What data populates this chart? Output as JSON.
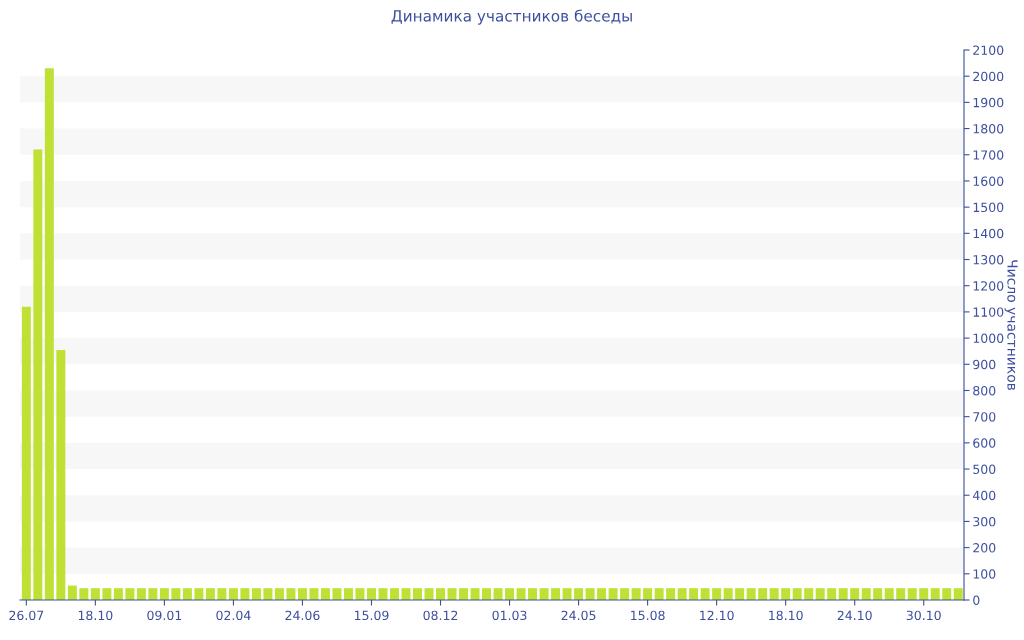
{
  "chart_data": {
    "type": "bar",
    "title": "Динамика участников беседы",
    "ylabel": "Число участников",
    "categories": [
      "26.07",
      null,
      null,
      null,
      null,
      null,
      "18.10",
      null,
      null,
      null,
      null,
      null,
      "09.01",
      null,
      null,
      null,
      null,
      null,
      "02.04",
      null,
      null,
      null,
      null,
      null,
      "24.06",
      null,
      null,
      null,
      null,
      null,
      "15.09",
      null,
      null,
      null,
      null,
      null,
      "08.12",
      null,
      null,
      null,
      null,
      null,
      "01.03",
      null,
      null,
      null,
      null,
      null,
      "24.05",
      null,
      null,
      null,
      null,
      null,
      "15.08",
      null,
      null,
      null,
      null,
      null,
      "12.10",
      null,
      null,
      null,
      null,
      null,
      "18.10",
      null,
      null,
      null,
      null,
      null,
      "24.10",
      null,
      null,
      null,
      null,
      null,
      "30.10",
      null,
      null,
      null
    ],
    "values": [
      1120,
      1720,
      2030,
      955,
      55,
      45,
      45,
      45,
      45,
      45,
      45,
      45,
      45,
      45,
      45,
      45,
      45,
      45,
      45,
      45,
      45,
      45,
      45,
      45,
      45,
      45,
      45,
      45,
      45,
      45,
      45,
      45,
      45,
      45,
      45,
      45,
      45,
      45,
      45,
      45,
      45,
      45,
      45,
      45,
      45,
      45,
      45,
      45,
      45,
      45,
      45,
      45,
      45,
      45,
      45,
      45,
      45,
      45,
      45,
      45,
      45,
      45,
      45,
      45,
      45,
      45,
      45,
      45,
      45,
      45,
      45,
      45,
      45,
      45,
      45,
      45,
      45,
      45,
      45,
      45,
      45,
      45
    ],
    "color": "#bfe034",
    "ylim": [
      0,
      2100
    ],
    "yticks": [
      0,
      100,
      200,
      300,
      400,
      500,
      600,
      700,
      800,
      900,
      1000,
      1100,
      1200,
      1300,
      1400,
      1500,
      1600,
      1700,
      1800,
      1900,
      2000,
      2100
    ],
    "bands": [
      {
        "axis": "y",
        "from": 100,
        "to": 200,
        "color": "#f7f7f7"
      },
      {
        "axis": "y",
        "from": 300,
        "to": 400,
        "color": "#f7f7f7"
      },
      {
        "axis": "y",
        "from": 500,
        "to": 600,
        "color": "#f7f7f7"
      },
      {
        "axis": "y",
        "from": 700,
        "to": 800,
        "color": "#f7f7f7"
      },
      {
        "axis": "y",
        "from": 900,
        "to": 1000,
        "color": "#f7f7f7"
      },
      {
        "axis": "y",
        "from": 1100,
        "to": 1200,
        "color": "#f7f7f7"
      },
      {
        "axis": "y",
        "from": 1300,
        "to": 1400,
        "color": "#f7f7f7"
      },
      {
        "axis": "y",
        "from": 1500,
        "to": 1600,
        "color": "#f7f7f7"
      },
      {
        "axis": "y",
        "from": 1700,
        "to": 1800,
        "color": "#f7f7f7"
      },
      {
        "axis": "y",
        "from": 1900,
        "to": 2000,
        "color": "#f7f7f7"
      }
    ],
    "legend": false
  }
}
